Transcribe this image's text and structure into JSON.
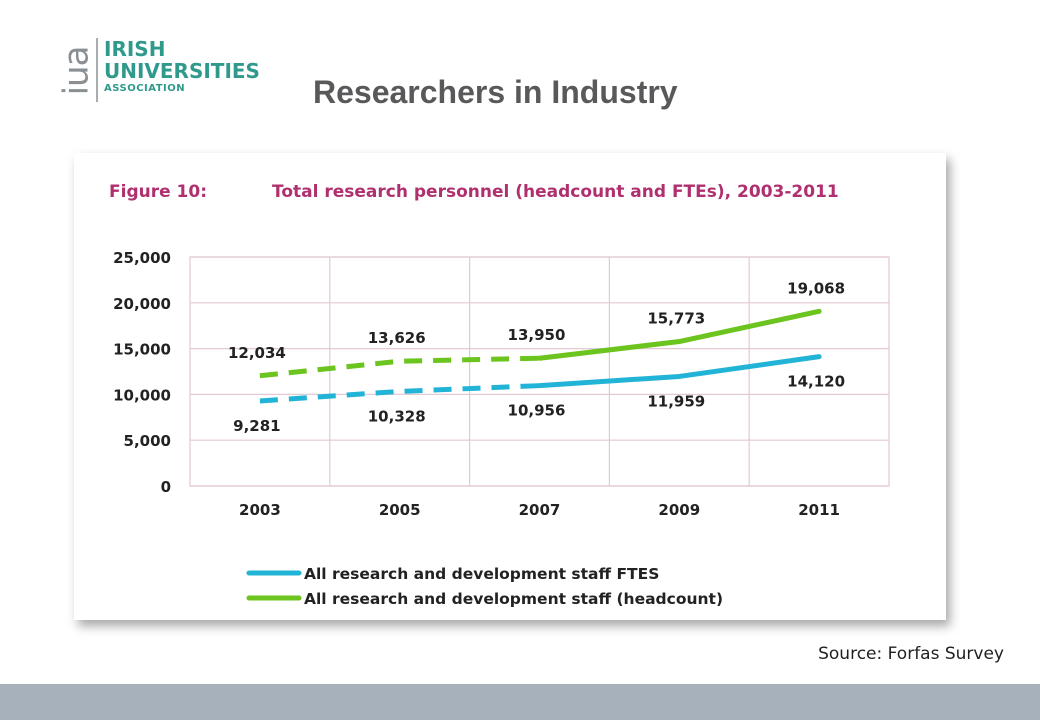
{
  "logo": {
    "mark": "iua",
    "line1": "IRISH",
    "line2": "UNIVERSITIES",
    "line3": "ASSOCIATION",
    "color": "#2f9a8c"
  },
  "slide": {
    "title": "Researchers in Industry",
    "source": "Source: Forfas Survey"
  },
  "chart_data": {
    "type": "line",
    "figure_label": "Figure 10:",
    "title": "Total research personnel (headcount and FTEs), 2003-2011",
    "categories": [
      "2003",
      "2005",
      "2007",
      "2009",
      "2011"
    ],
    "ylim": [
      0,
      25000
    ],
    "yticks": [
      0,
      5000,
      10000,
      15000,
      20000,
      25000
    ],
    "ytick_labels": [
      "0",
      "5,000",
      "10,000",
      "15,000",
      "20,000",
      "25,000"
    ],
    "grid": true,
    "legend_position": "bottom-left",
    "dashed_until_category_index": 2,
    "series": [
      {
        "name": "All research and development staff FTES",
        "color": "#22b4d6",
        "values": [
          9281,
          10328,
          10956,
          11959,
          14120
        ],
        "labels": [
          "9,281",
          "10,328",
          "10,956",
          "11,959",
          "14,120"
        ],
        "label_position": "below"
      },
      {
        "name": "All research and development staff (headcount)",
        "color": "#6cc41e",
        "values": [
          12034,
          13626,
          13950,
          15773,
          19068
        ],
        "labels": [
          "12,034",
          "13,626",
          "13,950",
          "15,773",
          "19,068"
        ],
        "label_position": "above"
      }
    ],
    "title_color": "#b0306f"
  }
}
